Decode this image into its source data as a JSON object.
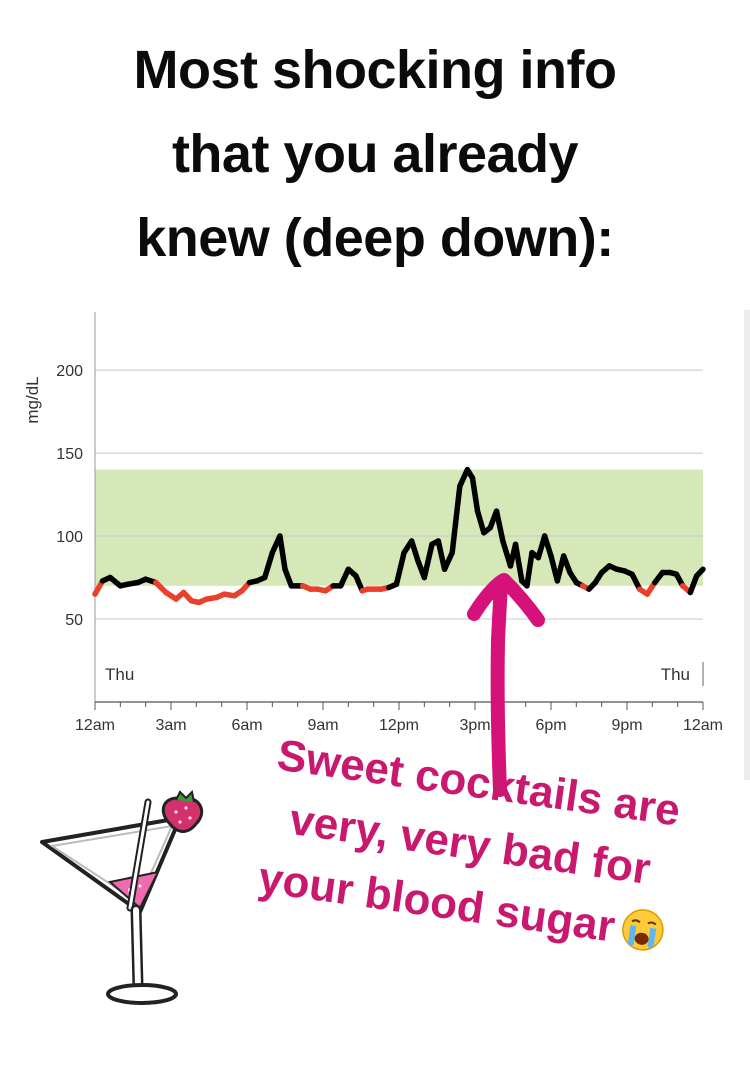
{
  "headline": {
    "lines": [
      "Most shocking info",
      "that you already",
      "knew (deep down):"
    ]
  },
  "caption": {
    "lines": [
      "Sweet cocktails are",
      "very, very bad for",
      "your blood sugar"
    ],
    "emoji_icon": "crying-face-icon"
  },
  "chart_data": {
    "type": "line",
    "title": "",
    "ylabel": "mg/dL",
    "xlabel": "",
    "ylim": [
      0,
      235
    ],
    "xlim": [
      0,
      24
    ],
    "yticks": [
      50,
      100,
      150,
      200
    ],
    "xtick_positions": [
      0,
      3,
      6,
      9,
      12,
      15,
      18,
      21,
      24
    ],
    "xtick_labels": [
      "12am",
      "3am",
      "6am",
      "9am",
      "12pm",
      "3pm",
      "6pm",
      "9pm",
      "12am"
    ],
    "day_labels": [
      "Thu",
      "Thu"
    ],
    "target_range": [
      70,
      140
    ],
    "grid": true,
    "colors": {
      "in_range": "#000000",
      "below_range": "#e8402a",
      "target_band": "#d6e8b8",
      "annotation": "#d6127a"
    },
    "series": [
      {
        "x": [
          0,
          0.3,
          0.6,
          1.0,
          1.3,
          1.7,
          2.0,
          2.4,
          2.8,
          3.2,
          3.5,
          3.8,
          4.1,
          4.4,
          4.8,
          5.1,
          5.5,
          5.8,
          6.1,
          6.4,
          6.7,
          7.0,
          7.3,
          7.5,
          7.75,
          7.95,
          8.2,
          8.5,
          8.8,
          9.1,
          9.4,
          9.7,
          10.0,
          10.3,
          10.55,
          10.75,
          11.0,
          11.3,
          11.6,
          11.9,
          12.2,
          12.5,
          12.75,
          13.0,
          13.3,
          13.55,
          13.8,
          14.1,
          14.4,
          14.7,
          14.9,
          15.1,
          15.35,
          15.6,
          15.85,
          16.1,
          16.4,
          16.6,
          16.85,
          17.05,
          17.25,
          17.5,
          17.75,
          18.0,
          18.25,
          18.5,
          18.75,
          19.0,
          19.25,
          19.5,
          19.75,
          20.0,
          20.3,
          20.6,
          20.9,
          21.2,
          21.5,
          21.8,
          22.1,
          22.4,
          22.7,
          22.95,
          23.2,
          23.5,
          23.75,
          24.0
        ],
        "y": [
          65,
          73,
          75,
          70,
          71,
          72,
          74,
          72,
          66,
          62,
          66,
          61,
          60,
          62,
          63,
          65,
          64,
          67,
          72,
          73,
          75,
          90,
          100,
          80,
          70,
          70,
          70,
          68,
          68,
          67,
          70,
          70,
          80,
          76,
          67,
          68,
          68,
          68,
          69,
          71,
          90,
          97,
          85,
          75,
          95,
          97,
          80,
          90,
          130,
          140,
          135,
          115,
          102,
          105,
          115,
          97,
          82,
          95,
          73,
          70,
          90,
          87,
          100,
          88,
          73,
          88,
          78,
          72,
          70,
          68,
          72,
          78,
          82,
          80,
          79,
          77,
          68,
          65,
          72,
          78,
          78,
          77,
          70,
          66,
          76,
          80
        ]
      }
    ]
  }
}
